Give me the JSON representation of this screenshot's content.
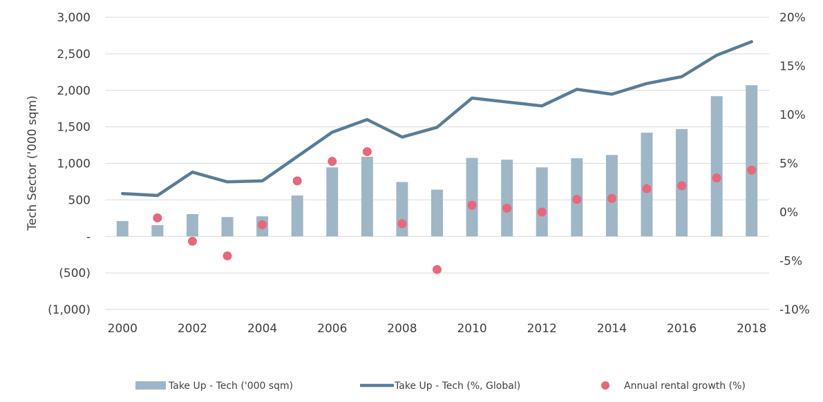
{
  "chart_data": {
    "type": "bar",
    "ylabel": "Tech Sector ('000 sqm)",
    "ylim": [
      -1000,
      3000
    ],
    "y2lim": [
      -10,
      20
    ],
    "y_ticks": [
      -1000,
      -500,
      0,
      500,
      1000,
      1500,
      2000,
      2500,
      3000
    ],
    "y_tick_labels": [
      "(1,000)",
      "(500)",
      "-",
      "500",
      "1,000",
      "1,500",
      "2,000",
      "2,500",
      "3,000"
    ],
    "y2_ticks": [
      -10,
      -5,
      0,
      5,
      10,
      15,
      20
    ],
    "y2_tick_labels": [
      "-10%",
      "-5%",
      "0%",
      "5%",
      "10%",
      "15%",
      "20%"
    ],
    "x": [
      2000,
      2001,
      2002,
      2003,
      2004,
      2005,
      2006,
      2007,
      2008,
      2009,
      2010,
      2011,
      2012,
      2013,
      2014,
      2015,
      2016,
      2017,
      2018
    ],
    "x_tick_labels": [
      "2000",
      "2002",
      "2004",
      "2006",
      "2008",
      "2010",
      "2012",
      "2014",
      "2016",
      "2018"
    ],
    "grid": "horizontal",
    "legend_position": "bottom",
    "series": [
      {
        "name": "Take Up - Tech ('000 sqm)",
        "type": "bar",
        "axis": "left",
        "color": "#9fb6c6",
        "values": [
          210,
          155,
          305,
          265,
          275,
          560,
          945,
          1090,
          745,
          640,
          1075,
          1050,
          945,
          1070,
          1115,
          1420,
          1470,
          1920,
          2070
        ]
      },
      {
        "name": "Take Up - Tech (%, Global)",
        "type": "line",
        "axis": "right",
        "color": "#587d97",
        "values": [
          1.9,
          1.7,
          4.1,
          3.1,
          3.2,
          5.7,
          8.2,
          9.5,
          7.7,
          8.7,
          11.7,
          11.3,
          10.9,
          12.6,
          12.1,
          13.2,
          13.9,
          16.1,
          17.5
        ]
      },
      {
        "name": "Annual rental growth (%)",
        "type": "scatter",
        "axis": "right",
        "color": "#e8677a",
        "values": [
          null,
          -0.6,
          -3.0,
          -4.5,
          -1.3,
          3.2,
          5.2,
          6.2,
          -1.2,
          -5.9,
          0.7,
          0.4,
          0.0,
          1.3,
          1.4,
          2.4,
          2.7,
          3.5,
          4.3
        ]
      }
    ]
  }
}
